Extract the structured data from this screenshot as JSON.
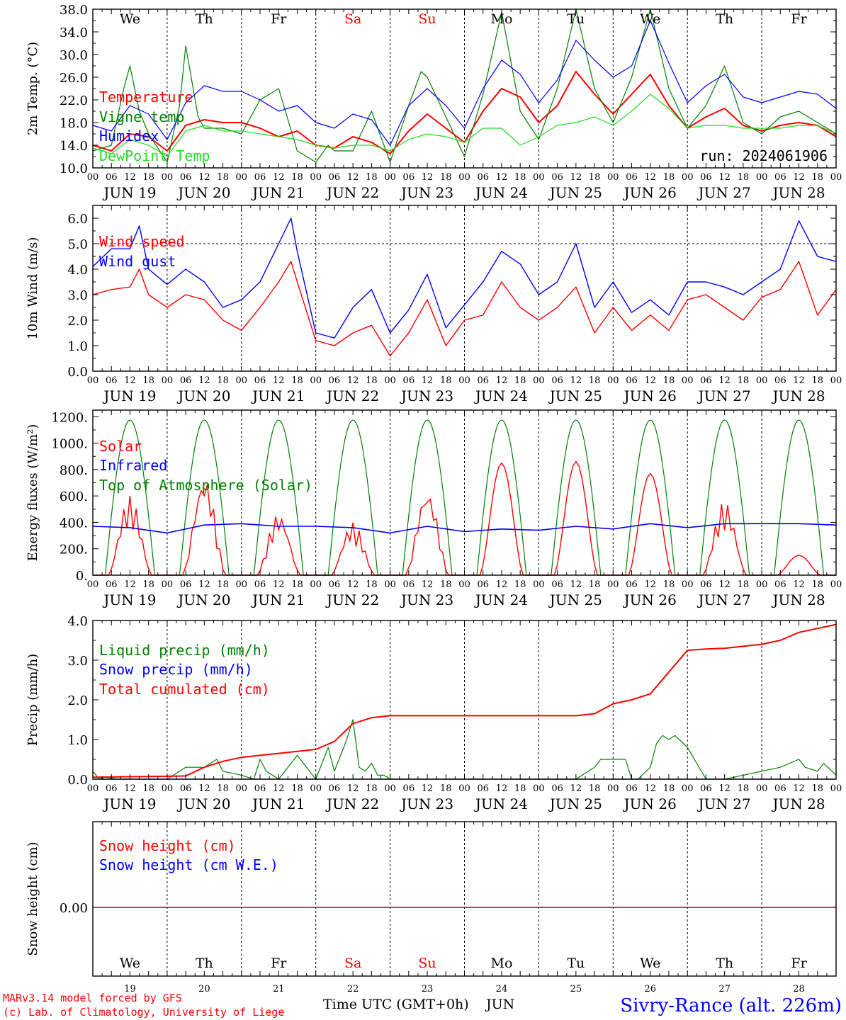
{
  "meta": {
    "run_label": "run: 2024061906",
    "footer_model": "MARv3.14 model forced by GFS",
    "footer_lab": "(c) Lab. of Climatology, University of Liege",
    "xlabel": "Time UTC (GMT+0h)",
    "month": "JUN",
    "station": "Sivry-Rance (alt. 226m)"
  },
  "days": [
    {
      "weekday": "We",
      "date": "JUN 19",
      "num": "19",
      "weekend": false
    },
    {
      "weekday": "Th",
      "date": "JUN 20",
      "num": "20",
      "weekend": false
    },
    {
      "weekday": "Fr",
      "date": "JUN 21",
      "num": "21",
      "weekend": false
    },
    {
      "weekday": "Sa",
      "date": "JUN 22",
      "num": "22",
      "weekend": true
    },
    {
      "weekday": "Su",
      "date": "JUN 23",
      "num": "23",
      "weekend": true
    },
    {
      "weekday": "Mo",
      "date": "JUN 24",
      "num": "24",
      "weekend": false
    },
    {
      "weekday": "Tu",
      "date": "JUN 25",
      "num": "25",
      "weekend": false
    },
    {
      "weekday": "We",
      "date": "JUN 26",
      "num": "26",
      "weekend": false
    },
    {
      "weekday": "Th",
      "date": "JUN 27",
      "num": "27",
      "weekend": false
    },
    {
      "weekday": "Fr",
      "date": "JUN 28",
      "num": "28",
      "weekend": false
    }
  ],
  "hour_labels": [
    "00",
    "06",
    "12",
    "18"
  ],
  "last_hour_label": "00",
  "colors": {
    "red": "#ff0000",
    "green": "#008000",
    "blue": "#0000ff",
    "lightgreen": "#22dd22",
    "weekend": "#ff0000",
    "purple": "#800080"
  },
  "chart_data": [
    {
      "id": "temp",
      "type": "line",
      "ylabel": "2m Temp. (°C)",
      "ylim": [
        10,
        38
      ],
      "yticks": [
        "10.0",
        "14.0",
        "18.0",
        "22.0",
        "26.0",
        "30.0",
        "34.0",
        "38.0"
      ],
      "series": [
        {
          "name": "Temperature",
          "color": "#ff0000",
          "x": [
            0,
            6,
            12,
            18,
            24,
            30,
            36,
            42,
            48,
            54,
            60,
            66,
            72,
            78,
            84,
            90,
            96,
            102,
            108,
            114,
            120,
            126,
            132,
            138,
            144,
            150,
            156,
            162,
            168,
            174,
            180,
            186,
            192,
            198,
            204,
            210,
            216,
            222,
            228,
            234,
            240
          ],
          "y": [
            14,
            13,
            16,
            15.5,
            13,
            17.5,
            18.5,
            18,
            18,
            17,
            15.5,
            16.5,
            14,
            13.5,
            15.5,
            14.5,
            12.5,
            16.5,
            19.5,
            17,
            14.5,
            20,
            24,
            22.5,
            18,
            21,
            27,
            23,
            19.5,
            23,
            26.5,
            21,
            17,
            19,
            20.5,
            17.5,
            16.5,
            17.5,
            18,
            17.5,
            15.5
          ]
        },
        {
          "name": "Vigne temp",
          "color": "#008000",
          "x": [
            0,
            6,
            10,
            12,
            15,
            18,
            24,
            28,
            30,
            34,
            36,
            42,
            48,
            54,
            60,
            66,
            72,
            76,
            78,
            84,
            90,
            96,
            102,
            106,
            108,
            114,
            120,
            126,
            132,
            138,
            144,
            150,
            156,
            162,
            168,
            174,
            180,
            186,
            192,
            198,
            204,
            210,
            216,
            222,
            228,
            234,
            240
          ],
          "y": [
            13,
            14,
            24,
            28,
            20,
            16,
            11,
            21,
            31.5,
            19,
            17,
            17,
            16,
            22,
            24,
            13,
            11,
            14,
            13,
            13,
            20,
            11,
            21,
            27,
            26,
            19,
            12,
            23,
            37.5,
            20,
            15,
            24,
            38,
            24,
            18,
            26,
            38,
            24,
            17,
            21,
            28,
            18,
            16,
            19,
            20,
            18,
            16
          ]
        },
        {
          "name": "Humidex",
          "color": "#0000ff",
          "x": [
            0,
            6,
            12,
            18,
            24,
            30,
            36,
            42,
            48,
            54,
            60,
            66,
            72,
            78,
            84,
            90,
            96,
            102,
            108,
            114,
            120,
            126,
            132,
            138,
            144,
            150,
            156,
            162,
            168,
            174,
            180,
            186,
            192,
            198,
            204,
            210,
            216,
            222,
            228,
            234,
            240
          ],
          "y": [
            17.5,
            16.5,
            21,
            19.5,
            15,
            21.5,
            24.5,
            23.5,
            23.5,
            22,
            20,
            21,
            18,
            17,
            19.5,
            18.5,
            14,
            21,
            24,
            21,
            17,
            24,
            29,
            26.5,
            21.5,
            25.5,
            32.5,
            29,
            26,
            28,
            36,
            28.5,
            21.5,
            24.5,
            26.5,
            22.5,
            21.5,
            22.5,
            23.5,
            23,
            20.5
          ]
        },
        {
          "name": "DewPoint Temp",
          "color": "#22dd22",
          "x": [
            0,
            6,
            12,
            18,
            24,
            30,
            36,
            42,
            48,
            54,
            60,
            66,
            72,
            78,
            84,
            90,
            96,
            102,
            108,
            114,
            120,
            126,
            132,
            138,
            144,
            150,
            156,
            162,
            168,
            174,
            180,
            186,
            192,
            198,
            204,
            210,
            216,
            222,
            228,
            234,
            240
          ],
          "y": [
            13.5,
            12.5,
            15,
            14,
            12,
            16.5,
            17.5,
            16.5,
            16.5,
            16,
            15.5,
            15,
            14,
            13.5,
            14,
            14,
            13,
            15,
            16,
            15.5,
            14.5,
            17,
            17,
            14,
            15.5,
            17.5,
            18,
            19,
            17.5,
            20,
            23,
            20.5,
            17,
            17.5,
            17.5,
            17,
            17,
            17,
            17.5,
            17.5,
            16
          ]
        }
      ]
    },
    {
      "id": "wind",
      "type": "line",
      "ylabel": "10m Wind (m/s)",
      "ylim": [
        0,
        6.5
      ],
      "yticks": [
        "0.0",
        "1.0",
        "2.0",
        "3.0",
        "4.0",
        "5.0",
        "6.0"
      ],
      "series": [
        {
          "name": "Wind speed",
          "color": "#ff0000",
          "x": [
            0,
            6,
            12,
            15,
            18,
            24,
            30,
            36,
            42,
            48,
            54,
            60,
            64,
            66,
            72,
            78,
            84,
            90,
            96,
            102,
            108,
            114,
            120,
            126,
            132,
            138,
            144,
            150,
            156,
            162,
            168,
            174,
            180,
            186,
            192,
            198,
            204,
            210,
            216,
            222,
            228,
            234,
            240
          ],
          "y": [
            3,
            3.2,
            3.3,
            4,
            3,
            2.5,
            3,
            2.8,
            2,
            1.6,
            2.5,
            3.5,
            4.3,
            3.5,
            1.2,
            1,
            1.5,
            1.8,
            0.6,
            1.5,
            2.8,
            1,
            2,
            2.2,
            3.5,
            2.5,
            2,
            2.5,
            3.3,
            1.5,
            2.5,
            1.6,
            2.2,
            1.6,
            2.8,
            3,
            2.5,
            2,
            2.9,
            3.2,
            4.3,
            2.2,
            3.2
          ]
        },
        {
          "name": "Wind gust",
          "color": "#0000ff",
          "x": [
            0,
            6,
            12,
            15,
            18,
            24,
            30,
            36,
            42,
            48,
            54,
            60,
            64,
            66,
            72,
            78,
            84,
            90,
            96,
            102,
            108,
            114,
            120,
            126,
            132,
            138,
            144,
            150,
            156,
            162,
            168,
            174,
            180,
            186,
            192,
            198,
            204,
            210,
            216,
            222,
            228,
            234,
            240
          ],
          "y": [
            4.1,
            4.8,
            4.8,
            5.7,
            4,
            3.4,
            4,
            3.5,
            2.5,
            2.8,
            3.5,
            5,
            6,
            4.7,
            1.5,
            1.3,
            2.5,
            3.2,
            1.5,
            2.4,
            3.8,
            1.7,
            2.6,
            3.5,
            4.7,
            4.2,
            3,
            3.5,
            5,
            2.5,
            3.5,
            2.3,
            2.8,
            2.2,
            3.5,
            3.5,
            3.3,
            3,
            3.5,
            4,
            5.9,
            4.5,
            4.3
          ]
        }
      ]
    },
    {
      "id": "energy",
      "type": "line",
      "ylabel": "Energy fluxes (W/m²)",
      "ylim": [
        0,
        1250
      ],
      "yticks": [
        "0.",
        "200.",
        "400.",
        "600.",
        "800.",
        "1000.",
        "1200."
      ],
      "series": [
        {
          "name": "Solar",
          "color": "#ff0000",
          "peaks": [
            600,
            750,
            470,
            400,
            650,
            850,
            860,
            770,
            560,
            150
          ]
        },
        {
          "name": "Infrared",
          "color": "#0000ff",
          "x": [
            0,
            12,
            24,
            36,
            48,
            60,
            72,
            84,
            96,
            108,
            120,
            132,
            144,
            156,
            168,
            180,
            192,
            204,
            216,
            228,
            240
          ],
          "y": [
            370,
            360,
            320,
            380,
            390,
            370,
            370,
            360,
            320,
            370,
            330,
            350,
            340,
            370,
            350,
            390,
            360,
            390,
            390,
            390,
            380
          ]
        },
        {
          "name": "Top of Atmosphere (Solar)",
          "color": "#008000",
          "peak": 1175
        }
      ]
    },
    {
      "id": "precip",
      "type": "line",
      "ylabel": "Precip (mm/h)",
      "ylim": [
        0,
        4
      ],
      "yticks": [
        "0.0",
        "1.0",
        "2.0",
        "3.0",
        "4.0"
      ],
      "series": [
        {
          "name": "Liquid precip (mm/h)",
          "color": "#008000",
          "x": [
            0,
            2,
            4,
            8,
            12,
            24,
            30,
            36,
            40,
            42,
            48,
            52,
            54,
            56,
            60,
            66,
            72,
            76,
            78,
            80,
            82,
            84,
            86,
            88,
            90,
            92,
            94,
            96,
            108,
            120,
            144,
            156,
            160,
            162,
            164,
            168,
            172,
            174,
            176,
            180,
            182,
            184,
            186,
            188,
            192,
            198,
            204,
            210,
            216,
            222,
            228,
            230,
            234,
            236,
            240
          ],
          "y": [
            0.2,
            0,
            0.05,
            0,
            0,
            0,
            0.3,
            0.3,
            0.5,
            0.2,
            0.1,
            0,
            0.5,
            0.2,
            0,
            0.6,
            0,
            0.8,
            0.2,
            0.6,
            1,
            1.5,
            0.3,
            0.2,
            0.4,
            0.1,
            0.1,
            0,
            0,
            0,
            0,
            0,
            0.2,
            0.3,
            0.5,
            0.5,
            0.5,
            0,
            0,
            0.3,
            0.9,
            1.1,
            1,
            1.1,
            0.8,
            0,
            0,
            0.1,
            0.2,
            0.3,
            0.5,
            0.3,
            0.2,
            0.4,
            0.1
          ]
        },
        {
          "name": "Snow precip (mm/h)",
          "color": "#0000ff",
          "x": [
            0,
            240
          ],
          "y": [
            0,
            0
          ]
        },
        {
          "name": "Total cumulated (cm)",
          "color": "#ff0000",
          "x": [
            0,
            30,
            36,
            42,
            48,
            54,
            60,
            66,
            72,
            78,
            84,
            90,
            96,
            120,
            144,
            156,
            162,
            168,
            174,
            180,
            186,
            192,
            198,
            204,
            210,
            216,
            222,
            228,
            240
          ],
          "y": [
            0.05,
            0.08,
            0.3,
            0.45,
            0.55,
            0.6,
            0.65,
            0.7,
            0.75,
            0.95,
            1.4,
            1.55,
            1.6,
            1.6,
            1.6,
            1.6,
            1.65,
            1.9,
            2.0,
            2.15,
            2.7,
            3.25,
            3.28,
            3.3,
            3.35,
            3.4,
            3.5,
            3.7,
            3.9
          ]
        }
      ]
    },
    {
      "id": "snow",
      "type": "line",
      "ylabel": "Snow height (cm)",
      "yticks": [
        "0.00"
      ],
      "series": [
        {
          "name": "Snow height (cm)",
          "color": "#ff0000",
          "x": [
            0,
            240
          ],
          "y": [
            0,
            0
          ]
        },
        {
          "name": "Snow height (cm W.E.)",
          "color": "#0000ff",
          "x": [
            0,
            240
          ],
          "y": [
            0,
            0
          ]
        }
      ]
    }
  ]
}
